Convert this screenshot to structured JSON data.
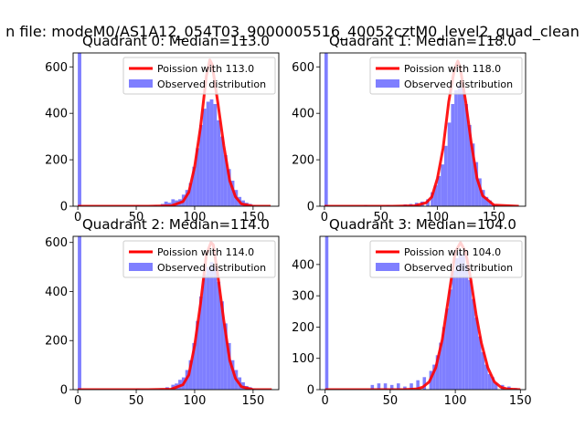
{
  "suptitle": "n file: modeM0/AS1A12_054T03_9000005516_40052cztM0_level2_quad_clean",
  "colors": {
    "observed": "#7f7fff",
    "poisson": "#ff0000",
    "axes": "#000000",
    "legend_border": "#cccccc"
  },
  "chart_data": [
    {
      "type": "bar",
      "title": "Quadrant 0: Median=113.0",
      "median": 113.0,
      "xlim": [
        -4,
        172
      ],
      "ylim": [
        0,
        660
      ],
      "xticks": [
        0,
        50,
        100,
        150
      ],
      "yticks": [
        0,
        200,
        400,
        600
      ],
      "legend_position": "top-right",
      "series": [
        {
          "name": "Poission with 113.0",
          "kind": "line",
          "x": [
            0,
            60,
            80,
            90,
            95,
            100,
            105,
            110,
            113,
            115,
            120,
            125,
            130,
            135,
            140,
            150,
            165
          ],
          "y": [
            0,
            0,
            2,
            20,
            60,
            170,
            340,
            560,
            630,
            610,
            440,
            260,
            110,
            40,
            10,
            0,
            0
          ]
        },
        {
          "name": "Observed distribution",
          "kind": "histogram",
          "bin_width": 3,
          "bins": [
            [
              0,
              660
            ],
            [
              50,
              5
            ],
            [
              65,
              5
            ],
            [
              71,
              10
            ],
            [
              74,
              20
            ],
            [
              77,
              15
            ],
            [
              80,
              30
            ],
            [
              83,
              25
            ],
            [
              86,
              30
            ],
            [
              89,
              50
            ],
            [
              92,
              70
            ],
            [
              95,
              100
            ],
            [
              98,
              170
            ],
            [
              101,
              250
            ],
            [
              104,
              350
            ],
            [
              107,
              420
            ],
            [
              110,
              450
            ],
            [
              113,
              460
            ],
            [
              116,
              440
            ],
            [
              119,
              370
            ],
            [
              122,
              300
            ],
            [
              125,
              220
            ],
            [
              128,
              160
            ],
            [
              131,
              110
            ],
            [
              134,
              70
            ],
            [
              137,
              40
            ],
            [
              140,
              25
            ],
            [
              143,
              15
            ],
            [
              146,
              10
            ],
            [
              149,
              5
            ]
          ]
        }
      ]
    },
    {
      "type": "bar",
      "title": "Quadrant 1: Median=118.0",
      "median": 118.0,
      "xlim": [
        -4,
        178
      ],
      "ylim": [
        0,
        660
      ],
      "xticks": [
        0,
        50,
        100,
        150
      ],
      "yticks": [
        0,
        200,
        400,
        600
      ],
      "legend_position": "top-right",
      "series": [
        {
          "name": "Poission with 118.0",
          "kind": "line",
          "x": [
            0,
            60,
            80,
            90,
            95,
            100,
            105,
            110,
            115,
            118,
            120,
            125,
            130,
            135,
            140,
            150,
            172
          ],
          "y": [
            0,
            0,
            2,
            15,
            40,
            120,
            250,
            450,
            590,
            625,
            600,
            450,
            270,
            120,
            45,
            5,
            0
          ]
        },
        {
          "name": "Observed distribution",
          "kind": "histogram",
          "bin_width": 3,
          "bins": [
            [
              0,
              660
            ],
            [
              35,
              5
            ],
            [
              55,
              5
            ],
            [
              70,
              8
            ],
            [
              75,
              10
            ],
            [
              80,
              15
            ],
            [
              85,
              20
            ],
            [
              90,
              30
            ],
            [
              94,
              60
            ],
            [
              97,
              90
            ],
            [
              100,
              130
            ],
            [
              103,
              180
            ],
            [
              106,
              260
            ],
            [
              109,
              360
            ],
            [
              112,
              440
            ],
            [
              115,
              500
            ],
            [
              118,
              520
            ],
            [
              121,
              510
            ],
            [
              124,
              440
            ],
            [
              127,
              350
            ],
            [
              130,
              270
            ],
            [
              133,
              190
            ],
            [
              136,
              120
            ],
            [
              139,
              70
            ],
            [
              142,
              40
            ],
            [
              145,
              25
            ],
            [
              148,
              10
            ],
            [
              151,
              5
            ]
          ]
        }
      ]
    },
    {
      "type": "bar",
      "title": "Quadrant 2: Median=114.0",
      "median": 114.0,
      "xlim": [
        -4,
        172
      ],
      "ylim": [
        0,
        625
      ],
      "xticks": [
        0,
        50,
        100,
        150
      ],
      "yticks": [
        0,
        200,
        400,
        600
      ],
      "legend_position": "top-right",
      "series": [
        {
          "name": "Poission with 114.0",
          "kind": "line",
          "x": [
            0,
            60,
            80,
            90,
            95,
            100,
            105,
            110,
            114,
            116,
            120,
            125,
            130,
            135,
            140,
            150,
            166
          ],
          "y": [
            0,
            0,
            2,
            20,
            60,
            180,
            350,
            550,
            600,
            590,
            460,
            280,
            120,
            45,
            12,
            0,
            0
          ]
        },
        {
          "name": "Observed distribution",
          "kind": "histogram",
          "bin_width": 3,
          "bins": [
            [
              0,
              625
            ],
            [
              50,
              5
            ],
            [
              70,
              5
            ],
            [
              75,
              10
            ],
            [
              80,
              20
            ],
            [
              83,
              25
            ],
            [
              86,
              40
            ],
            [
              89,
              50
            ],
            [
              92,
              80
            ],
            [
              95,
              120
            ],
            [
              98,
              190
            ],
            [
              101,
              280
            ],
            [
              104,
              380
            ],
            [
              107,
              470
            ],
            [
              110,
              500
            ],
            [
              113,
              520
            ],
            [
              116,
              500
            ],
            [
              119,
              440
            ],
            [
              122,
              360
            ],
            [
              125,
              270
            ],
            [
              128,
              190
            ],
            [
              131,
              120
            ],
            [
              134,
              80
            ],
            [
              137,
              50
            ],
            [
              140,
              30
            ],
            [
              143,
              15
            ],
            [
              146,
              10
            ],
            [
              149,
              5
            ]
          ]
        }
      ]
    },
    {
      "type": "bar",
      "title": "Quadrant 3: Median=104.0",
      "median": 104.0,
      "xlim": [
        -4,
        154
      ],
      "ylim": [
        0,
        490
      ],
      "xticks": [
        0,
        50,
        100,
        150
      ],
      "yticks": [
        0,
        100,
        200,
        300,
        400
      ],
      "legend_position": "top-right",
      "series": [
        {
          "name": "Poission with 104.0",
          "kind": "line",
          "x": [
            0,
            60,
            70,
            75,
            80,
            85,
            90,
            95,
            100,
            104,
            108,
            112,
            116,
            120,
            125,
            130,
            135,
            140,
            150
          ],
          "y": [
            0,
            0,
            2,
            8,
            25,
            70,
            160,
            300,
            440,
            470,
            440,
            350,
            240,
            150,
            70,
            25,
            8,
            2,
            0
          ]
        },
        {
          "name": "Observed distribution",
          "kind": "histogram",
          "bin_width": 2.5,
          "bins": [
            [
              0,
              490
            ],
            [
              35,
              15
            ],
            [
              40,
              20
            ],
            [
              45,
              20
            ],
            [
              50,
              15
            ],
            [
              55,
              20
            ],
            [
              60,
              10
            ],
            [
              65,
              20
            ],
            [
              70,
              30
            ],
            [
              75,
              40
            ],
            [
              80,
              60
            ],
            [
              82.5,
              80
            ],
            [
              85,
              110
            ],
            [
              87.5,
              150
            ],
            [
              90,
              200
            ],
            [
              92.5,
              260
            ],
            [
              95,
              320
            ],
            [
              97.5,
              380
            ],
            [
              100,
              420
            ],
            [
              102.5,
              440
            ],
            [
              105,
              430
            ],
            [
              107.5,
              400
            ],
            [
              110,
              350
            ],
            [
              112.5,
              290
            ],
            [
              115,
              230
            ],
            [
              117.5,
              170
            ],
            [
              120,
              120
            ],
            [
              122.5,
              80
            ],
            [
              125,
              50
            ],
            [
              127.5,
              40
            ],
            [
              130,
              20
            ],
            [
              135,
              15
            ],
            [
              140,
              10
            ],
            [
              145,
              5
            ]
          ]
        }
      ]
    }
  ]
}
